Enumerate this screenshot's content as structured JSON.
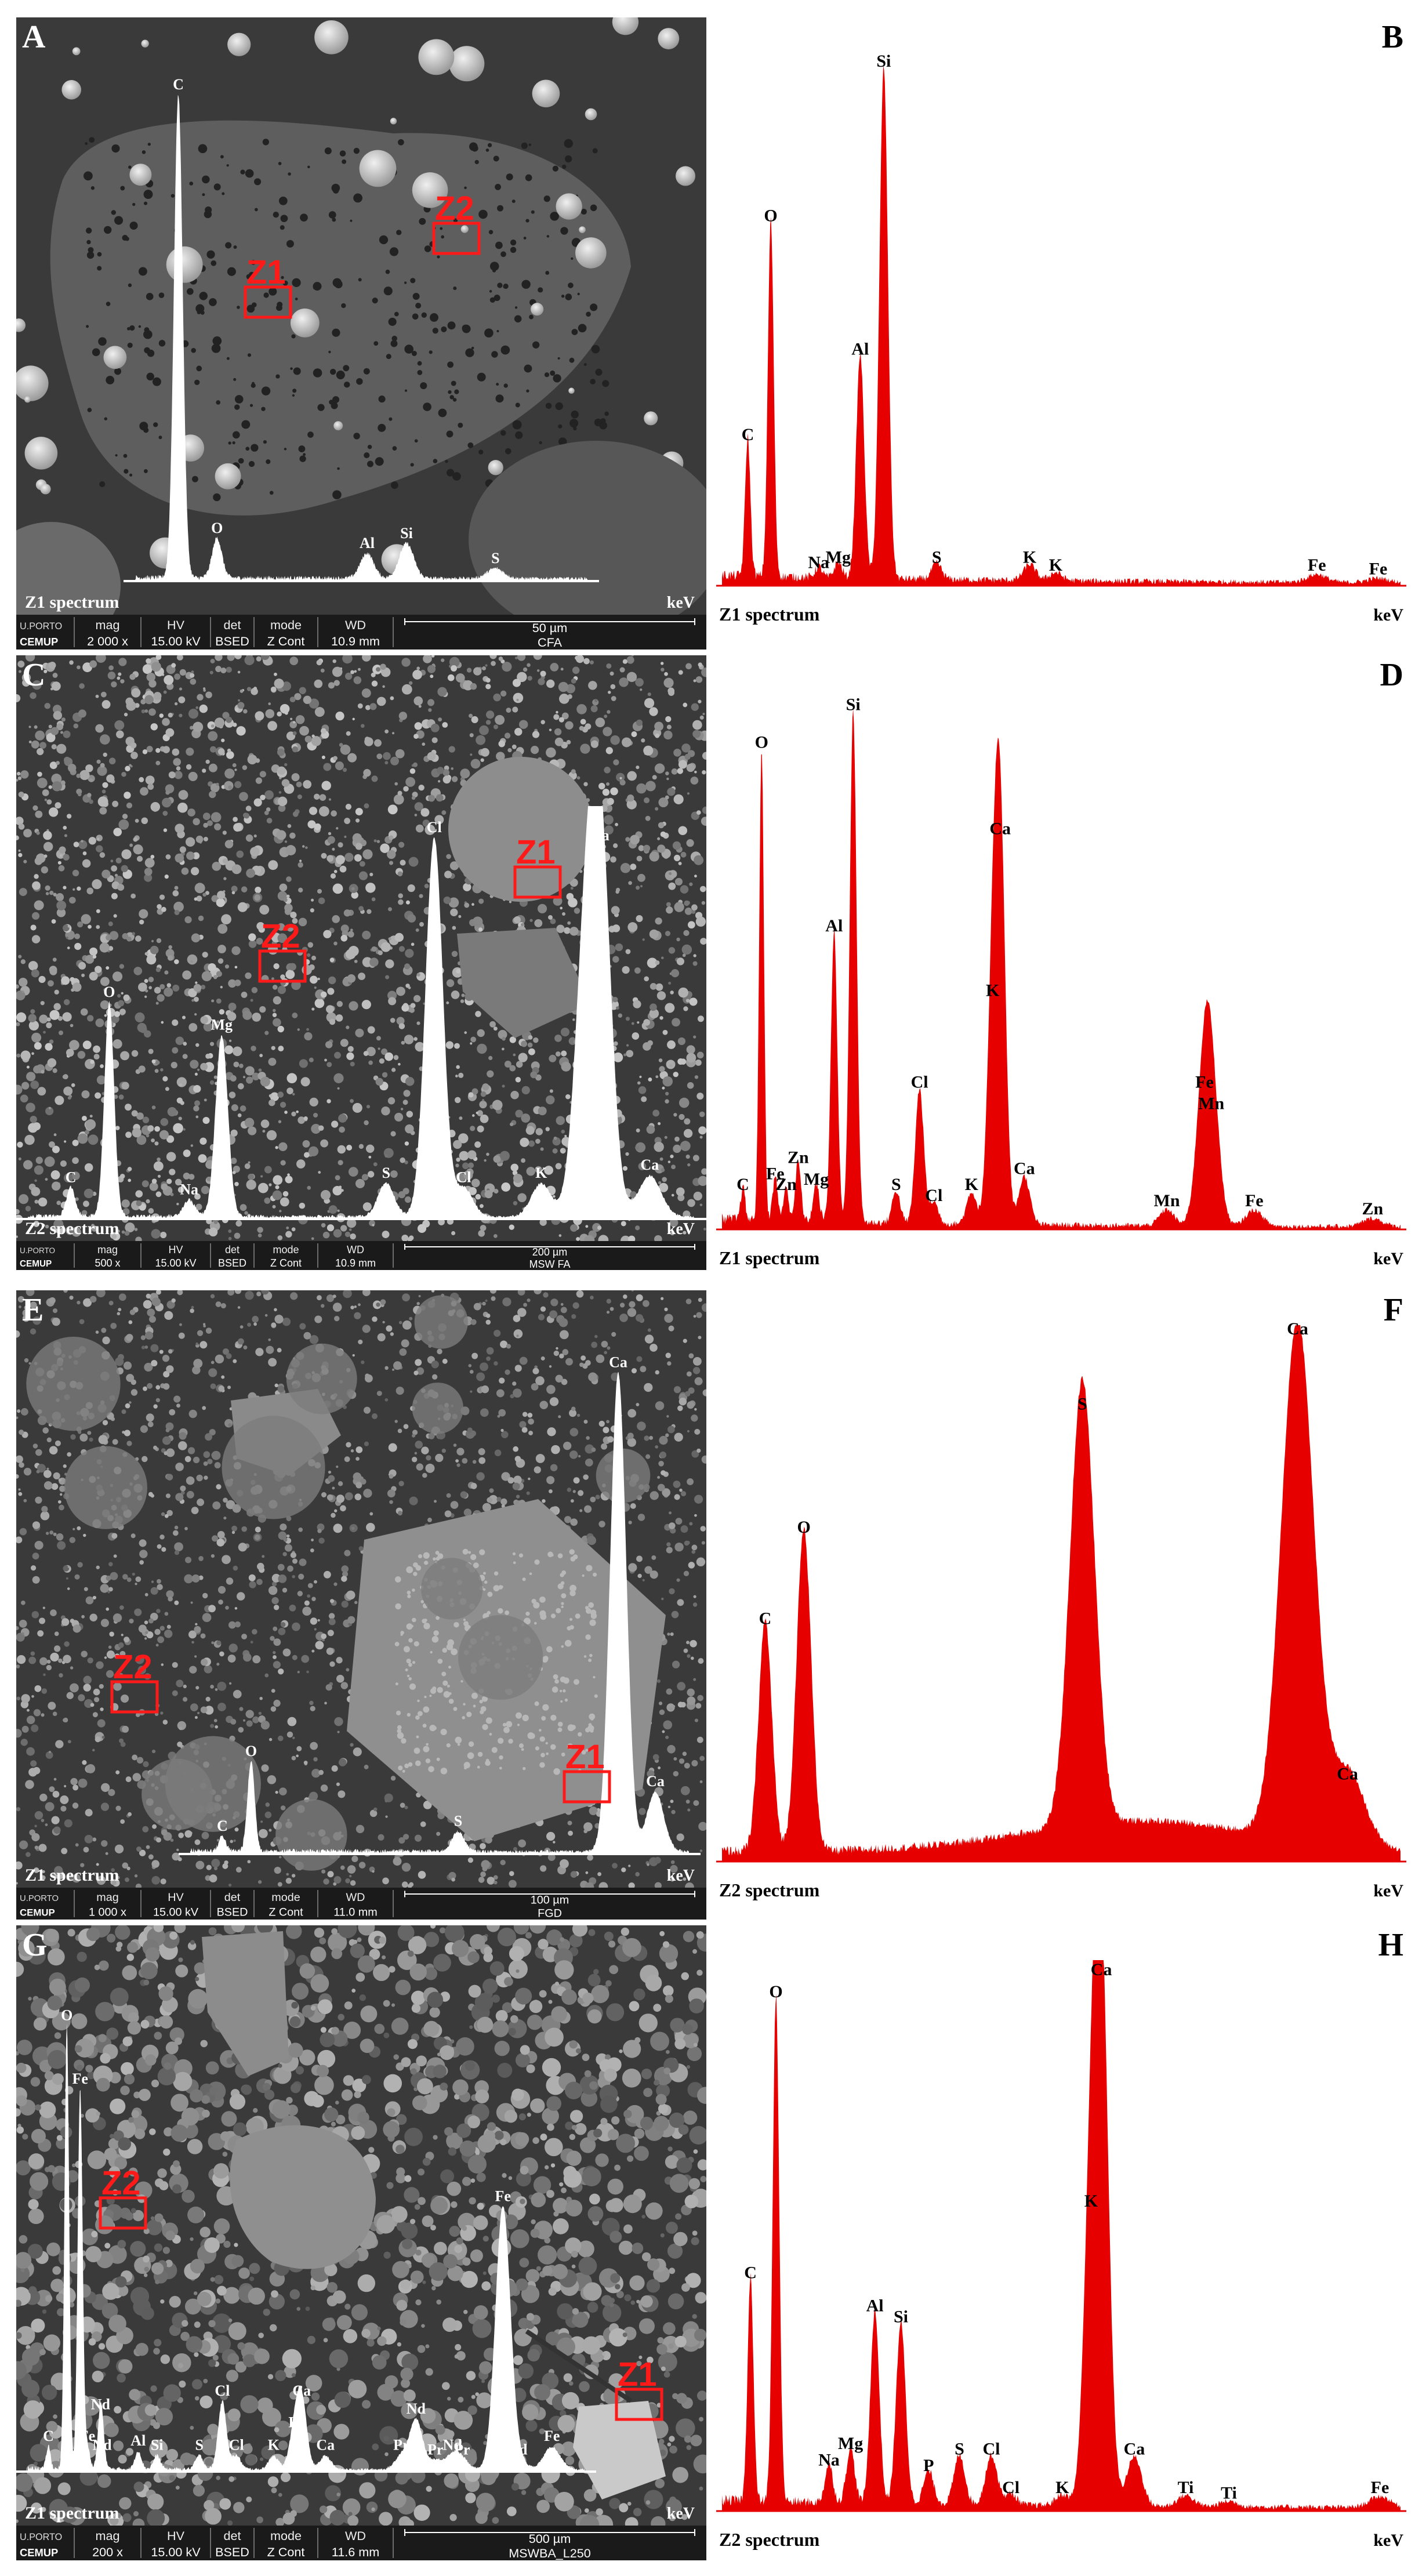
{
  "colors": {
    "spectrum": "#e60000",
    "overlay": "#ffffff",
    "zone_box": "#ff1a1a",
    "sem_bg": "#3a3a3a",
    "infobar": "#1a1a1a"
  },
  "infobar_labels": {
    "logo_top": "U.PORTO",
    "logo_bottom": "CEMUP",
    "mag": "mag",
    "hv": "HV",
    "det": "det",
    "mode": "mode",
    "wd": "WD"
  },
  "panels": [
    {
      "letter": "A",
      "spec_letter": "B",
      "sem": {
        "zones": [
          {
            "label": "Z1"
          },
          {
            "label": "Z2"
          }
        ],
        "inset": {
          "caption": "Z1 spectrum",
          "unit": "keV",
          "peaks": [
            {
              "label": "C",
              "e": 0.277,
              "h": 0.97
            },
            {
              "label": "O",
              "e": 0.525,
              "h": 0.08
            },
            {
              "label": "Al",
              "e": 1.487,
              "h": 0.05
            },
            {
              "label": "Si",
              "e": 1.74,
              "h": 0.07
            },
            {
              "label": "S",
              "e": 2.31,
              "h": 0.02
            }
          ],
          "xmax": 2.9
        },
        "info": {
          "mag": "2 000 x",
          "hv": "15.00 kV",
          "det": "BSED",
          "mode": "Z Cont",
          "wd": "10.9 mm",
          "scale": "50 µm",
          "sample": "CFA"
        }
      },
      "spectrum": {
        "caption": "Z1 spectrum",
        "unit": "keV",
        "peaks": [
          {
            "label": "C",
            "e": 0.277,
            "h": 0.26
          },
          {
            "label": "O",
            "e": 0.525,
            "h": 0.67
          },
          {
            "label": "Na",
            "e": 1.04,
            "h": 0.02
          },
          {
            "label": "Mg",
            "e": 1.25,
            "h": 0.03
          },
          {
            "label": "Al",
            "e": 1.487,
            "h": 0.42
          },
          {
            "label": "Si",
            "e": 1.74,
            "h": 0.96
          },
          {
            "label": "S",
            "e": 2.31,
            "h": 0.03
          },
          {
            "label": "K",
            "e": 3.31,
            "h": 0.03
          },
          {
            "label": "K",
            "e": 3.59,
            "h": 0.015
          },
          {
            "label": "Fe",
            "e": 6.4,
            "h": 0.015
          },
          {
            "label": "Fe",
            "e": 7.06,
            "h": 0.008
          }
        ],
        "xmax": 7.3
      }
    },
    {
      "letter": "C",
      "spec_letter": "D",
      "sem": {
        "zones": [
          {
            "label": "Z1"
          },
          {
            "label": "Z2"
          }
        ],
        "inset": {
          "caption": "Z2 spectrum",
          "unit": "keV",
          "peaks": [
            {
              "label": "C",
              "e": 0.277,
              "h": 0.07
            },
            {
              "label": "O",
              "e": 0.525,
              "h": 0.52
            },
            {
              "label": "Na",
              "e": 1.04,
              "h": 0.04
            },
            {
              "label": "Mg",
              "e": 1.25,
              "h": 0.44
            },
            {
              "label": "S",
              "e": 2.31,
              "h": 0.08
            },
            {
              "label": "Cl",
              "e": 2.62,
              "h": 0.92
            },
            {
              "label": "Cl",
              "e": 2.81,
              "h": 0.07
            },
            {
              "label": "K",
              "e": 3.31,
              "h": 0.08
            },
            {
              "label": "Ca",
              "e": 3.69,
              "h": 0.9
            },
            {
              "label": "K",
              "e": 3.59,
              "h": 0.55
            },
            {
              "label": "Ca",
              "e": 4.01,
              "h": 0.1
            }
          ],
          "xmax": 4.3
        },
        "info": {
          "mag": "500 x",
          "hv": "15.00 kV",
          "det": "BSED",
          "mode": "Z Cont",
          "wd": "10.9 mm",
          "scale": "200 µm",
          "sample": "MSW FA"
        }
      },
      "spectrum": {
        "caption": "Z1 spectrum",
        "unit": "keV",
        "peaks": [
          {
            "label": "C",
            "e": 0.277,
            "h": 0.06
          },
          {
            "label": "O",
            "e": 0.525,
            "h": 0.88
          },
          {
            "label": "Fe",
            "e": 0.705,
            "h": 0.08
          },
          {
            "label": "Zn",
            "e": 1.01,
            "h": 0.11
          },
          {
            "label": "Zn",
            "e": 0.85,
            "h": 0.06
          },
          {
            "label": "Mg",
            "e": 1.25,
            "h": 0.07
          },
          {
            "label": "Al",
            "e": 1.487,
            "h": 0.54
          },
          {
            "label": "Si",
            "e": 1.74,
            "h": 0.95
          },
          {
            "label": "S",
            "e": 2.31,
            "h": 0.06
          },
          {
            "label": "Cl",
            "e": 2.62,
            "h": 0.25
          },
          {
            "label": "Cl",
            "e": 2.81,
            "h": 0.04
          },
          {
            "label": "K",
            "e": 3.31,
            "h": 0.06
          },
          {
            "label": "K",
            "e": 3.59,
            "h": 0.42
          },
          {
            "label": "Ca",
            "e": 3.69,
            "h": 0.72
          },
          {
            "label": "Ca",
            "e": 4.01,
            "h": 0.09
          },
          {
            "label": "Mn",
            "e": 5.9,
            "h": 0.03
          },
          {
            "label": "Fe",
            "e": 6.4,
            "h": 0.25
          },
          {
            "label": "Mn",
            "e": 6.49,
            "h": 0.21
          },
          {
            "label": "Fe",
            "e": 7.06,
            "h": 0.03
          },
          {
            "label": "Zn",
            "e": 8.63,
            "h": 0.015
          }
        ],
        "xmax": 9.0
      }
    },
    {
      "letter": "E",
      "spec_letter": "F",
      "sem": {
        "zones": [
          {
            "label": "Z1"
          },
          {
            "label": "Z2"
          }
        ],
        "inset": {
          "caption": "Z1 spectrum",
          "unit": "keV",
          "peaks": [
            {
              "label": "C",
              "e": 0.277,
              "h": 0.03
            },
            {
              "label": "O",
              "e": 0.525,
              "h": 0.18
            },
            {
              "label": "S",
              "e": 2.31,
              "h": 0.04
            },
            {
              "label": "Ca",
              "e": 3.69,
              "h": 0.96
            },
            {
              "label": "Ca",
              "e": 4.01,
              "h": 0.12
            }
          ],
          "xmax": 4.3
        },
        "info": {
          "mag": "1 000 x",
          "hv": "15.00 kV",
          "det": "BSED",
          "mode": "Z Cont",
          "wd": "11.0 mm",
          "scale": "100 µm",
          "sample": "FGD"
        }
      },
      "spectrum": {
        "caption": "Z2 spectrum",
        "unit": "keV",
        "peaks": [
          {
            "label": "C",
            "e": 0.277,
            "h": 0.43
          },
          {
            "label": "O",
            "e": 0.525,
            "h": 0.6
          },
          {
            "label": "S",
            "e": 2.31,
            "h": 0.83
          },
          {
            "label": "Ca",
            "e": 3.69,
            "h": 0.97
          },
          {
            "label": "Ca",
            "e": 4.01,
            "h": 0.14
          }
        ],
        "xmax": 4.35
      }
    },
    {
      "letter": "G",
      "spec_letter": "H",
      "sem": {
        "zones": [
          {
            "label": "Z1"
          },
          {
            "label": "Z2"
          }
        ],
        "inset": {
          "caption": "Z1 spectrum",
          "unit": "keV",
          "peaks": [
            {
              "label": "C",
              "e": 0.277,
              "h": 0.05
            },
            {
              "label": "O",
              "e": 0.525,
              "h": 0.98
            },
            {
              "label": "Fe",
              "e": 0.705,
              "h": 0.84
            },
            {
              "label": "Nd",
              "e": 0.98,
              "h": 0.12
            },
            {
              "label": "Fe",
              "e": 0.8,
              "h": 0.05
            },
            {
              "label": "Nd",
              "e": 1.0,
              "h": 0.03
            },
            {
              "label": "Al",
              "e": 1.487,
              "h": 0.04
            },
            {
              "label": "Si",
              "e": 1.74,
              "h": 0.03
            },
            {
              "label": "S",
              "e": 2.31,
              "h": 0.03
            },
            {
              "label": "Cl",
              "e": 2.62,
              "h": 0.15
            },
            {
              "label": "Cl",
              "e": 2.81,
              "h": 0.03
            },
            {
              "label": "K",
              "e": 3.31,
              "h": 0.03
            },
            {
              "label": "Ca",
              "e": 3.69,
              "h": 0.15
            },
            {
              "label": "K",
              "e": 3.59,
              "h": 0.08
            },
            {
              "label": "Ca",
              "e": 4.01,
              "h": 0.03
            },
            {
              "label": "Pr",
              "e": 5.03,
              "h": 0.03
            },
            {
              "label": "Nd",
              "e": 5.23,
              "h": 0.11
            },
            {
              "label": "Pr",
              "e": 5.49,
              "h": 0.02
            },
            {
              "label": "Nd",
              "e": 5.72,
              "h": 0.03
            },
            {
              "label": "Pr",
              "e": 5.85,
              "h": 0.02
            },
            {
              "label": "Fe",
              "e": 6.4,
              "h": 0.58
            },
            {
              "label": "Nd",
              "e": 6.6,
              "h": 0.02
            },
            {
              "label": "Fe",
              "e": 7.06,
              "h": 0.05
            }
          ],
          "xmax": 7.5
        },
        "info": {
          "mag": "200 x",
          "hv": "15.00 kV",
          "det": "BSED",
          "mode": "Z Cont",
          "wd": "11.6 mm",
          "scale": "500 µm",
          "sample": "MSWBA_L250"
        }
      },
      "spectrum": {
        "caption": "Z2 spectrum",
        "unit": "keV",
        "peaks": [
          {
            "label": "C",
            "e": 0.277,
            "h": 0.41
          },
          {
            "label": "O",
            "e": 0.525,
            "h": 0.92
          },
          {
            "label": "Na",
            "e": 1.04,
            "h": 0.07
          },
          {
            "label": "Mg",
            "e": 1.25,
            "h": 0.1
          },
          {
            "label": "Al",
            "e": 1.487,
            "h": 0.35
          },
          {
            "label": "Si",
            "e": 1.74,
            "h": 0.33
          },
          {
            "label": "P",
            "e": 2.01,
            "h": 0.06
          },
          {
            "label": "S",
            "e": 2.31,
            "h": 0.09
          },
          {
            "label": "Cl",
            "e": 2.62,
            "h": 0.09
          },
          {
            "label": "Cl",
            "e": 2.81,
            "h": 0.02
          },
          {
            "label": "K",
            "e": 3.31,
            "h": 0.02
          },
          {
            "label": "K",
            "e": 3.59,
            "h": 0.54
          },
          {
            "label": "Ca",
            "e": 3.69,
            "h": 0.96
          },
          {
            "label": "Ca",
            "e": 4.01,
            "h": 0.09
          },
          {
            "label": "Ti",
            "e": 4.51,
            "h": 0.02
          },
          {
            "label": "Ti",
            "e": 4.93,
            "h": 0.01
          },
          {
            "label": "Fe",
            "e": 6.4,
            "h": 0.02
          }
        ],
        "xmax": 6.6
      }
    }
  ]
}
